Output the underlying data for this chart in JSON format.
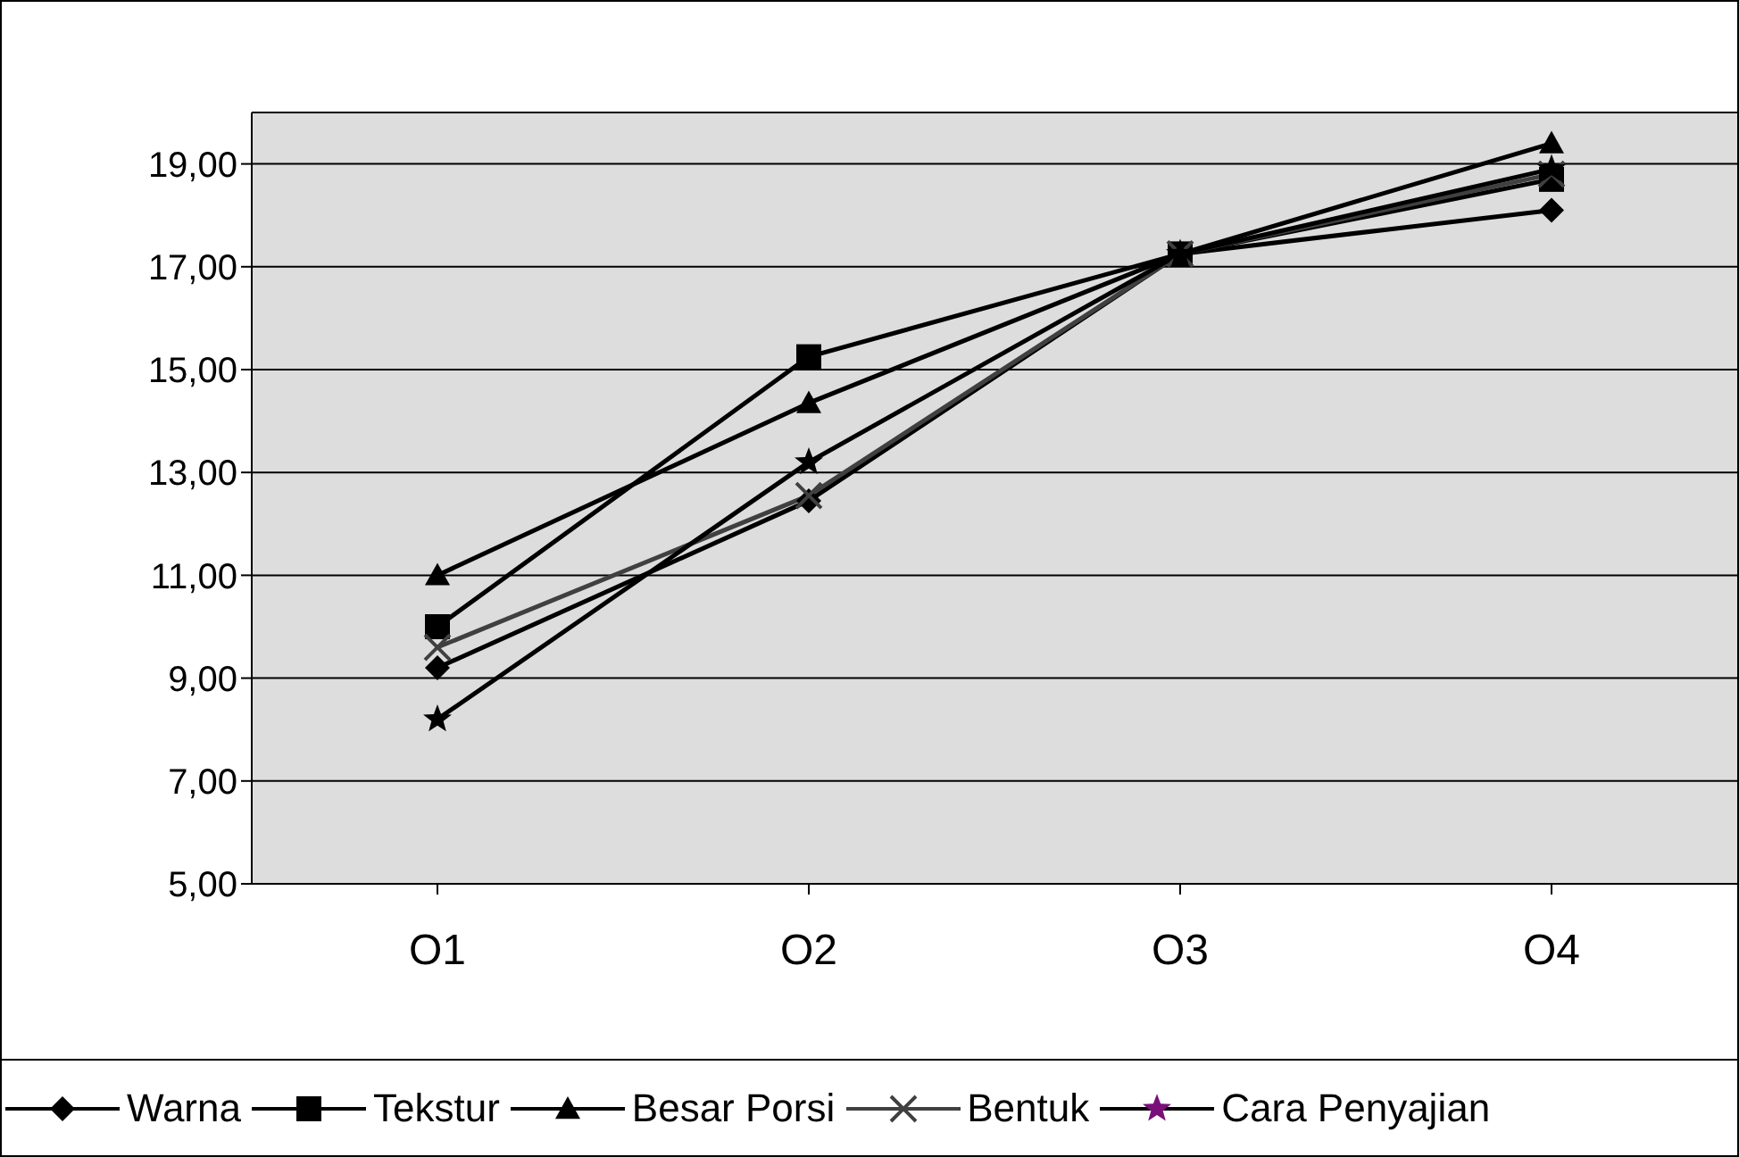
{
  "chart_data": {
    "type": "line",
    "categories": [
      "O1",
      "O2",
      "O3",
      "O4"
    ],
    "series": [
      {
        "name": "Warna",
        "color": "#000000",
        "marker": "diamond",
        "values": [
          9.2,
          12.45,
          17.25,
          18.1
        ]
      },
      {
        "name": "Tekstur",
        "color": "#000000",
        "marker": "square",
        "values": [
          10.0,
          15.25,
          17.25,
          18.7
        ]
      },
      {
        "name": "Besar Porsi",
        "color": "#000000",
        "marker": "triangle",
        "values": [
          11.0,
          14.35,
          17.25,
          19.4
        ]
      },
      {
        "name": "Bentuk",
        "color": "#404040",
        "marker": "cross",
        "values": [
          9.6,
          12.55,
          17.25,
          18.8
        ]
      },
      {
        "name": "Cara Penyajian",
        "color": "#000000",
        "marker": "star",
        "values": [
          8.2,
          13.2,
          17.25,
          18.9
        ]
      }
    ],
    "ylim": [
      5,
      20
    ],
    "yticks": [
      {
        "value": 5,
        "label": "5,00"
      },
      {
        "value": 7,
        "label": "7,00"
      },
      {
        "value": 9,
        "label": "9,00"
      },
      {
        "value": 11,
        "label": "11,00"
      },
      {
        "value": 13,
        "label": "13,00"
      },
      {
        "value": 15,
        "label": "15,00"
      },
      {
        "value": 17,
        "label": "17,00"
      },
      {
        "value": 19,
        "label": "19,00"
      }
    ],
    "grid": "y",
    "legend": "bottom"
  }
}
